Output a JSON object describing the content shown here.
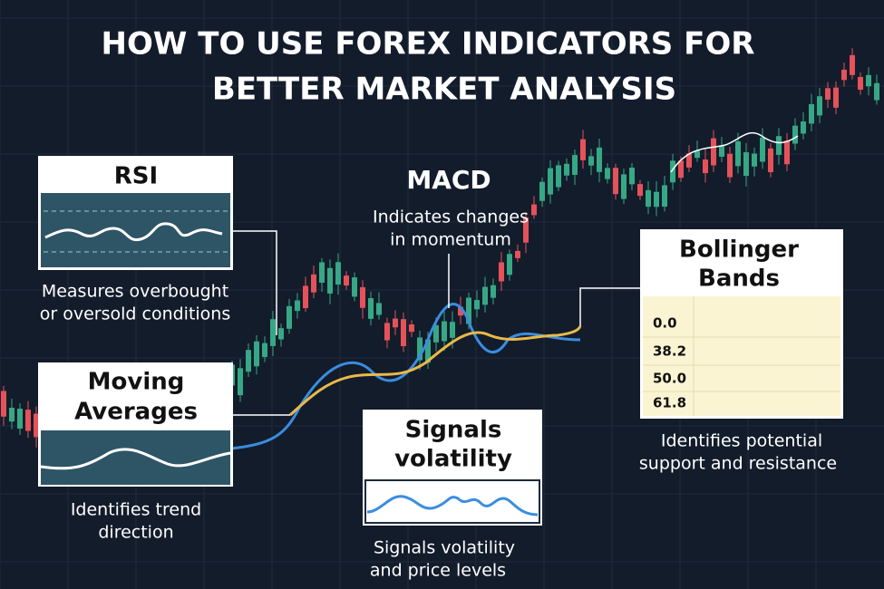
{
  "title": [
    "HOW TO USE FOREX INDICATORS FOR",
    "BETTER MARKET ANALYSIS"
  ],
  "panels": {
    "rsi": {
      "label": "RSI",
      "description": [
        "Measures overbought",
        "or oversold conditions"
      ]
    },
    "moving_averages": {
      "label": [
        "Moving",
        "Averages"
      ],
      "description": [
        "Identifies trend",
        "direction"
      ]
    },
    "macd": {
      "label": "MACD",
      "description": [
        "Indicates changes",
        "in momentum"
      ]
    },
    "volatility": {
      "label": [
        "Signals",
        "volatility"
      ],
      "description": [
        "Signals volatility",
        "and price levels"
      ]
    },
    "bollinger": {
      "label": [
        "Bollinger",
        "Bands"
      ],
      "levels": [
        "0.0",
        "38.2",
        "50.0",
        "61.8"
      ],
      "description": [
        "Identifies potential",
        "support and resistance"
      ]
    }
  }
}
